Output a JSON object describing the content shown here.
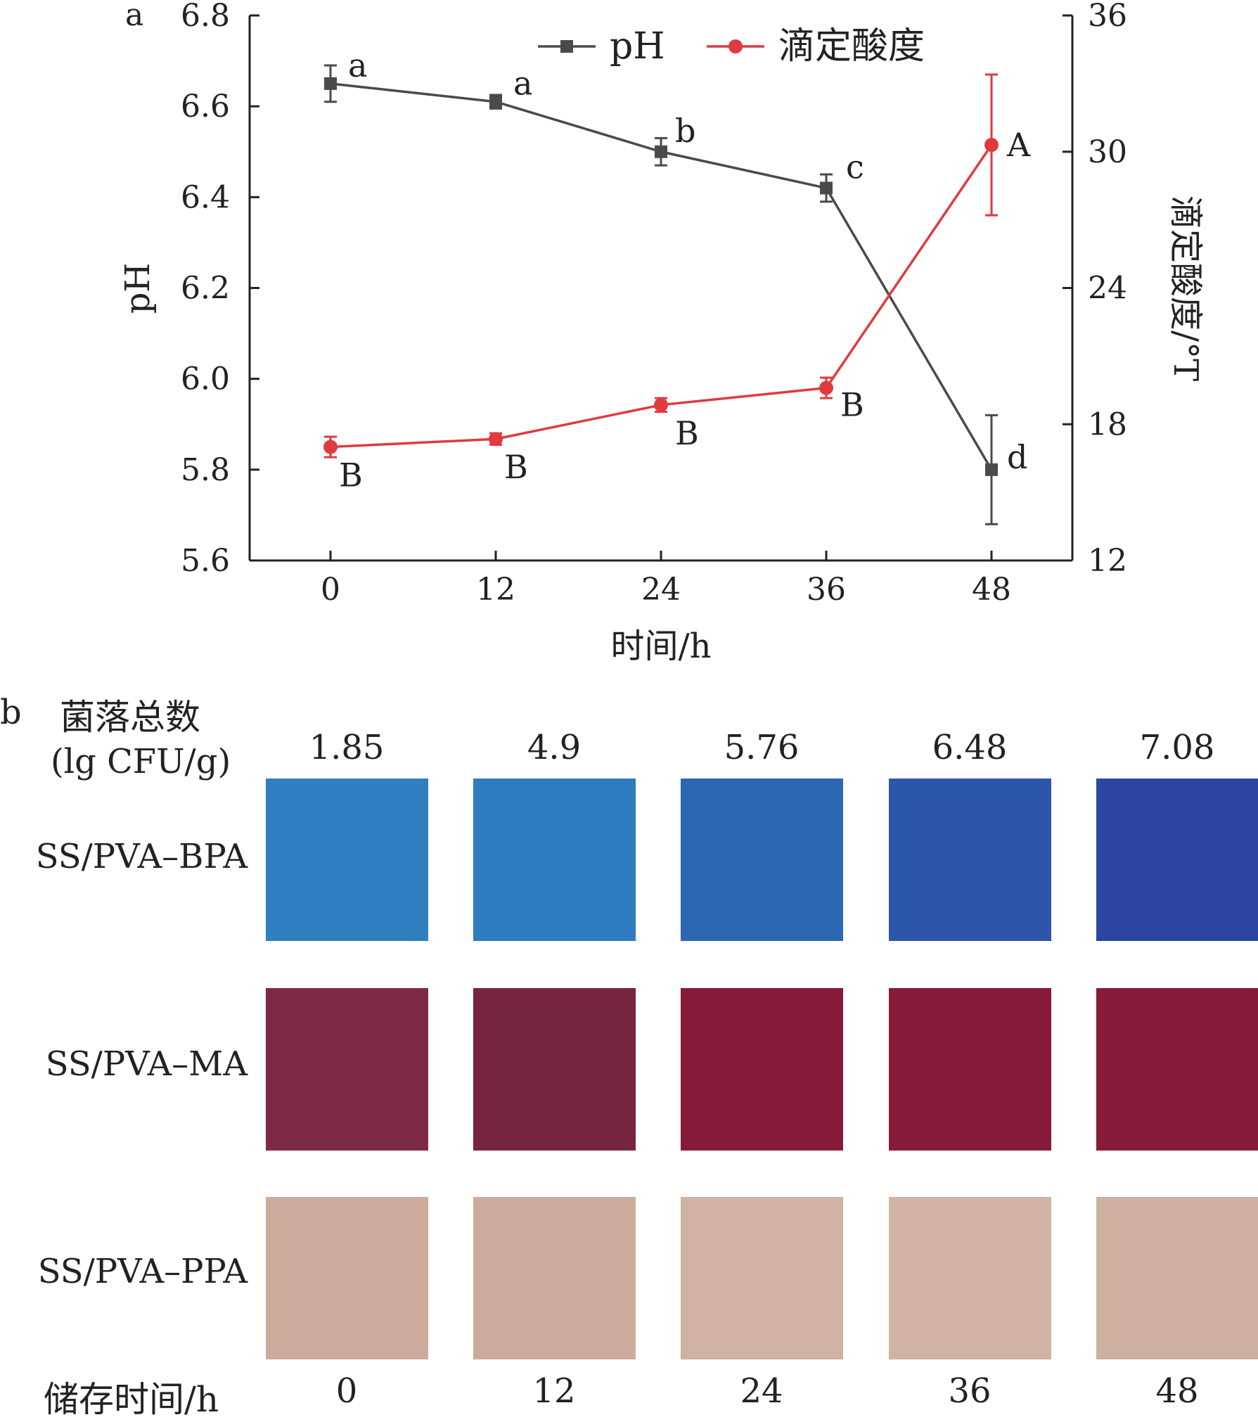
{
  "panel_a": {
    "tag": "a"
  },
  "panel_b": {
    "tag": "b",
    "header_line1": "菌落总数",
    "header_line2": "(lg CFU/g)",
    "colony_counts": [
      "1.85",
      "4.9",
      "5.76",
      "6.48",
      "7.08"
    ],
    "rows": [
      {
        "label": "SS/PVA–BPA",
        "colors": [
          "#2f7fc1",
          "#2f7bc0",
          "#2c67b1",
          "#2d55aa",
          "#2c45a0"
        ]
      },
      {
        "label": "SS/PVA–MA",
        "colors": [
          "#7f2a45",
          "#762440",
          "#861a39",
          "#861a39",
          "#861a38"
        ]
      },
      {
        "label": "SS/PVA–PPA",
        "colors": [
          "#cdab9c",
          "#cdab9c",
          "#cfb2a1",
          "#d0b3a3",
          "#cfb1a1"
        ]
      }
    ],
    "footer_label": "储存时间/h",
    "times": [
      "0",
      "12",
      "24",
      "36",
      "48"
    ]
  },
  "chart_data": {
    "type": "line",
    "x": [
      0,
      12,
      24,
      36,
      48
    ],
    "x_ticks": [
      "0",
      "12",
      "24",
      "36",
      "48"
    ],
    "xlabel": "时间/h",
    "ylabel_left": "pH",
    "ylabel_right": "滴定酸度/°T",
    "ylim_left": [
      5.6,
      6.8
    ],
    "ylim_right": [
      12,
      36
    ],
    "yticks_left": [
      "5.6",
      "5.8",
      "6.0",
      "6.2",
      "6.4",
      "6.6",
      "6.8"
    ],
    "yticks_right": [
      "12",
      "18",
      "24",
      "30",
      "36"
    ],
    "legend_position": "top-center",
    "grid": false,
    "series": [
      {
        "name": "pH",
        "axis": "left",
        "color": "#4a4a4a",
        "marker": "square",
        "values": [
          6.65,
          6.61,
          6.5,
          6.42,
          5.8
        ],
        "errors": [
          0.04,
          0.015,
          0.03,
          0.03,
          0.12
        ],
        "labels": [
          "a",
          "a",
          "b",
          "c",
          "d"
        ]
      },
      {
        "name": "滴定酸度",
        "axis": "right",
        "color": "#e03a3e",
        "marker": "circle",
        "values": [
          17.0,
          17.35,
          18.85,
          19.6,
          30.3
        ],
        "errors": [
          0.45,
          0.25,
          0.3,
          0.45,
          3.1
        ],
        "labels": [
          "B",
          "B",
          "B",
          "B",
          "A"
        ]
      }
    ]
  }
}
